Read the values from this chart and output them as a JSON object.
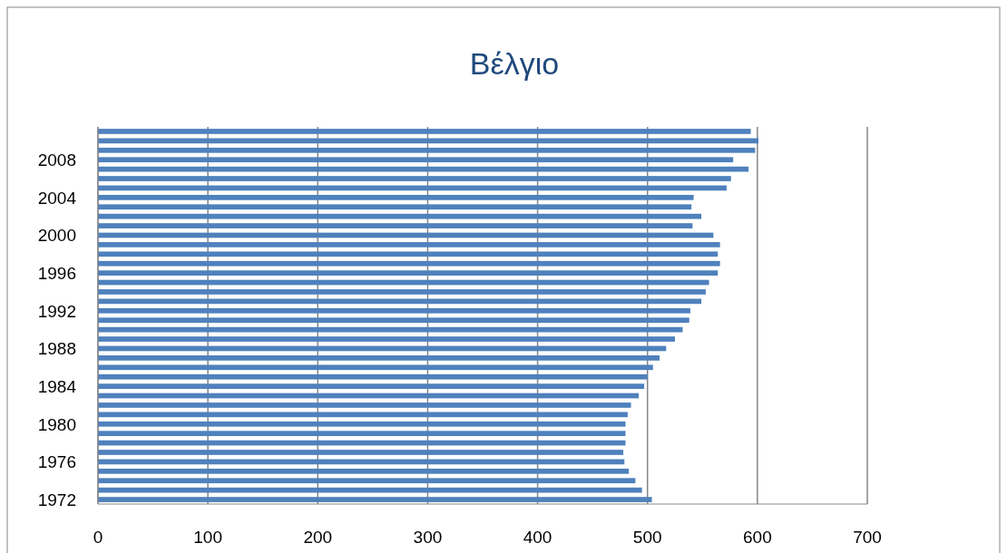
{
  "chart_data": {
    "type": "bar",
    "orientation": "horizontal",
    "title": "Βέλγιο",
    "categories": [
      null,
      null,
      null,
      "2008",
      null,
      null,
      null,
      "2004",
      null,
      null,
      null,
      "2000",
      null,
      null,
      null,
      "1996",
      null,
      null,
      null,
      "1992",
      null,
      null,
      null,
      "1988",
      null,
      null,
      null,
      "1984",
      null,
      null,
      null,
      "1980",
      null,
      null,
      null,
      "1976",
      null,
      null,
      null,
      "1972"
    ],
    "values": [
      594,
      601,
      598,
      578,
      592,
      576,
      572,
      542,
      540,
      549,
      541,
      560,
      566,
      564,
      566,
      564,
      556,
      553,
      549,
      539,
      538,
      532,
      525,
      517,
      511,
      505,
      500,
      497,
      492,
      485,
      482,
      480,
      480,
      480,
      478,
      479,
      483,
      489,
      495,
      504
    ],
    "color": "#4f81bd",
    "xlim": [
      0,
      700
    ],
    "xticks": [
      0,
      100,
      200,
      300,
      400,
      500,
      600,
      700
    ],
    "grid": "x"
  }
}
